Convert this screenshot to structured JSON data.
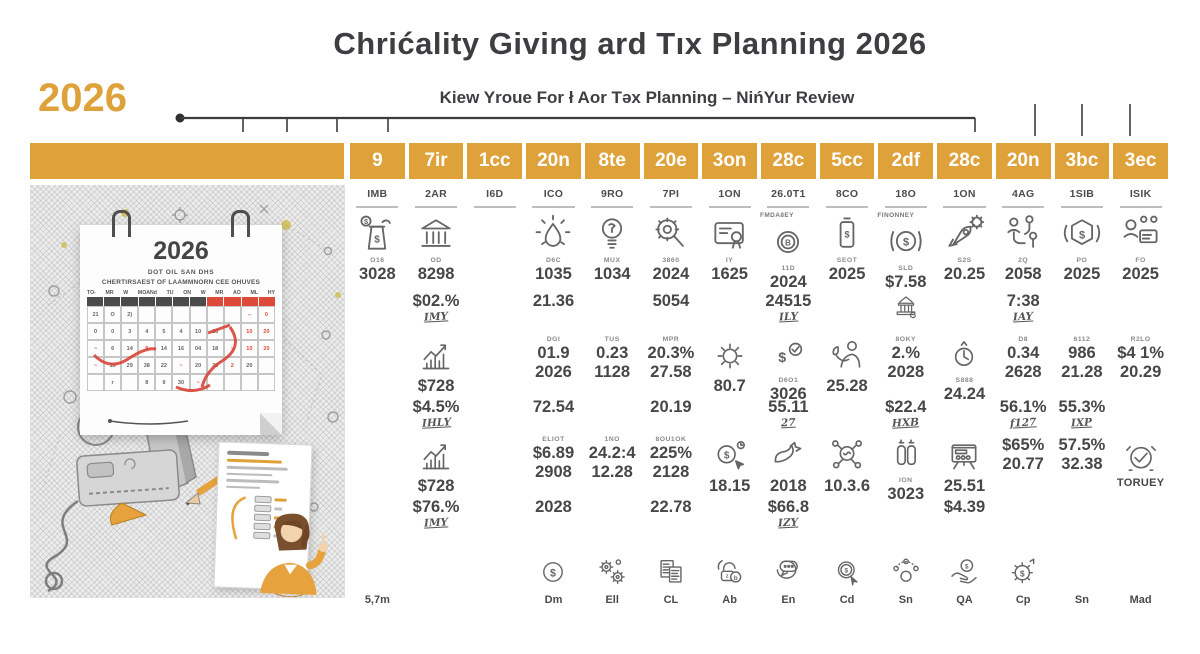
{
  "title": "Chrićality Giving ard Tıx Planning 2026",
  "subtitle": "Kiew Yroue For ł Aor Təx Planning – NińYur Review",
  "year_badge": "2026",
  "colors": {
    "accent": "#dfa23b",
    "red": "#dd4a39",
    "ink": "#3d3d42",
    "icon_grey": "#666666"
  },
  "columns": [
    {
      "header": "9",
      "month": "IMB",
      "slots": {
        "r1": {
          "icon": "money-bag-icon",
          "tiny": "O16",
          "value": "3028"
        },
        "bottom": {
          "label": "5,7m"
        }
      }
    },
    {
      "header": "7ir",
      "month": "2AR",
      "slots": {
        "r1": {
          "icon": "bank-icon",
          "tiny": "OD",
          "value": "8298"
        },
        "r2": {
          "value": "$02.%",
          "sub": "IMY"
        },
        "r3": {
          "icon": "bar-chart-icon",
          "value": "$728"
        },
        "r4": {
          "value": "$4.5%",
          "sub": "IHLY"
        },
        "r5": {
          "icon": "bar-chart-icon",
          "value": "$728"
        },
        "r6": {
          "value": "$76.%",
          "sub": "IMY"
        }
      }
    },
    {
      "header": "1cc",
      "month": "I6D",
      "slots": {}
    },
    {
      "header": "20n",
      "month": "ICO",
      "slots": {
        "r1": {
          "icon": "droplet-icon",
          "tiny": "D6C",
          "value": "1035"
        },
        "r2": {
          "value": "21.36"
        },
        "r3": {
          "value": "01.9",
          "tiny": "DGI",
          "value2": "2026"
        },
        "r4": {
          "value": "72.54"
        },
        "r5": {
          "value": "$6.89",
          "tiny": "ELIOT",
          "value2": "2908"
        },
        "r6": {
          "value": "2028"
        },
        "bottom": {
          "icon": "dollar-coin-icon",
          "label": "Dm"
        }
      }
    },
    {
      "header": "8te",
      "month": "9RO",
      "slots": {
        "r1": {
          "icon": "bulb-icon",
          "tiny": "MUX",
          "value": "1034"
        },
        "r3": {
          "value": "0.23",
          "tiny": "TUS",
          "value2": "1128"
        },
        "r5": {
          "value": "24.2:4",
          "tiny": "1NO",
          "value2": "12.28"
        },
        "bottom": {
          "icon": "gears-icon",
          "label": "Ell"
        }
      }
    },
    {
      "header": "20e",
      "month": "7PI",
      "slots": {
        "r1": {
          "icon": "magnifier-gear-icon",
          "tiny": "3860",
          "value": "2024"
        },
        "r2": {
          "value": "5054"
        },
        "r3": {
          "value": "20.3%",
          "tiny": "MPR",
          "value2": "27.58"
        },
        "r4": {
          "value": "20.19"
        },
        "r5": {
          "value": "225%",
          "tiny": "8OU1OK",
          "value2": "2128"
        },
        "r6": {
          "value": "22.78"
        },
        "bottom": {
          "icon": "documents-icon",
          "label": "CL"
        }
      }
    },
    {
      "header": "3on",
      "month": "1ON",
      "slots": {
        "r1": {
          "icon": "certificate-icon",
          "tiny": "IY",
          "value": "1625"
        },
        "r3": {
          "icon": "sun-icon",
          "value": "80.7"
        },
        "r5": {
          "icon": "coin-cursor-icon",
          "value": "18.15"
        },
        "bottom": {
          "icon": "lock-shield-icon",
          "label": "Ab"
        }
      }
    },
    {
      "header": "28c",
      "month": "26.0T1",
      "slots": {
        "r1": {
          "top": "FMDA8EY",
          "icon": "coin-b-icon",
          "tiny": "11D",
          "value": "2024"
        },
        "r2": {
          "value": "24515",
          "sub": "ILY"
        },
        "r3": {
          "icon": "dollar-check-icon",
          "tiny": "D6O1",
          "value": "3026"
        },
        "r4": {
          "value": "55.11",
          "sub": "27"
        },
        "r5": {
          "icon": "bird-icon",
          "value": "2018"
        },
        "r6": {
          "value": "$66.8",
          "sub": "IZY"
        },
        "bottom": {
          "icon": "chat-coin-icon",
          "label": "En"
        }
      }
    },
    {
      "header": "5cc",
      "month": "8CO",
      "slots": {
        "r1": {
          "icon": "battery-dollar-icon",
          "tiny": "SEOT",
          "value": "2025"
        },
        "r3": {
          "icon": "person-plant-icon",
          "value": "25.28"
        },
        "r5": {
          "icon": "molecule-icon",
          "value": "10.3.6"
        },
        "bottom": {
          "icon": "coin-arrow-icon",
          "label": "Cd"
        }
      }
    },
    {
      "header": "2df",
      "month": "18O",
      "slots": {
        "r1": {
          "top": "FINONNEY",
          "icon": "circle-dollar-icon",
          "tiny": "SLD",
          "value": "$7.58"
        },
        "r2": {
          "icon": "museum-icon"
        },
        "r3": {
          "value": "2.%",
          "tiny": "8OKY",
          "value2": "2028"
        },
        "r4": {
          "value": "$22.4",
          "sub": "HXB"
        },
        "r5": {
          "icon": "flasks-icon",
          "tiny": "ION",
          "value": "3023"
        },
        "bottom": {
          "icon": "network-icon",
          "label": "Sn"
        }
      }
    },
    {
      "header": "28c",
      "month": "1ON",
      "slots": {
        "r1": {
          "icon": "rocket-gear-icon",
          "tiny": "S2S",
          "value": "20.25"
        },
        "r3": {
          "icon": "clock-icon",
          "tiny": "S888",
          "value": "24.24"
        },
        "r5": {
          "icon": "board-icon",
          "value": "25.51"
        },
        "r6": {
          "value": "$4.39"
        },
        "bottom": {
          "icon": "hand-coin-icon",
          "label": "QA"
        }
      }
    },
    {
      "header": "20n",
      "month": "4AG",
      "slots": {
        "r1": {
          "icon": "people-flow-icon",
          "tiny": "2Q",
          "value": "2058"
        },
        "r2": {
          "value": "7:38",
          "sub": "IAY"
        },
        "r3": {
          "value": "0.34",
          "tiny": "D8",
          "value2": "2628"
        },
        "r4": {
          "value": "56.1%",
          "sub": "f127"
        },
        "r5": {
          "value": "$65%",
          "value2": "20.77"
        },
        "bottom": {
          "icon": "gear-dollar-icon",
          "label": "Cp"
        }
      }
    },
    {
      "header": "3bc",
      "month": "1SIB",
      "slots": {
        "r1": {
          "icon": "hex-dollar-icon",
          "tiny": "PO",
          "value": "2025"
        },
        "r3": {
          "value": "986",
          "tiny": "6112",
          "value2": "21.28"
        },
        "r4": {
          "value": "55.3%",
          "sub": "IXP"
        },
        "r5": {
          "value": "57.5%",
          "value2": "32.38"
        },
        "bottom": {
          "label": "Sn"
        }
      }
    },
    {
      "header": "3ec",
      "month": "ISIK",
      "slots": {
        "r1": {
          "icon": "person-card-icon",
          "tiny": "FO",
          "value": "2025"
        },
        "r3": {
          "value": "$4 1%",
          "tiny": "R2LO",
          "value2": "20.29"
        },
        "r5": {
          "icon": "alarm-check-icon",
          "value": "TORUEY"
        },
        "bottom": {
          "label": "Mad"
        }
      }
    }
  ],
  "illustration": {
    "calendar": {
      "year": "2026",
      "line1": "DOT OIL SAN DHS",
      "line2": "CHERTIRSAEST OF LAAMMNORN CEE OHUVES",
      "weekdays": [
        "TO-",
        "MR",
        "W",
        "MOANd",
        "TU",
        "ON",
        "W",
        "MR",
        "AO",
        "ML",
        "HY"
      ],
      "rows": [
        [
          "21",
          "O",
          "2)",
          "",
          "",
          "",
          "",
          "",
          "",
          "!--",
          "!0"
        ],
        [
          "0",
          "0",
          "3",
          "4",
          "5",
          "4",
          "10",
          "10",
          "",
          "!10",
          "!20"
        ],
        [
          "~",
          "6",
          "14",
          "!9",
          "14",
          "16",
          "04",
          "18",
          "!~",
          "!10",
          "!20"
        ],
        [
          "!~",
          "19",
          "29",
          "38",
          "22",
          "!~",
          "20",
          "28",
          "!2",
          "20",
          ""
        ],
        [
          "",
          "r",
          "",
          "8",
          "9",
          "30",
          "!~",
          "",
          "",
          "",
          ""
        ]
      ]
    }
  }
}
